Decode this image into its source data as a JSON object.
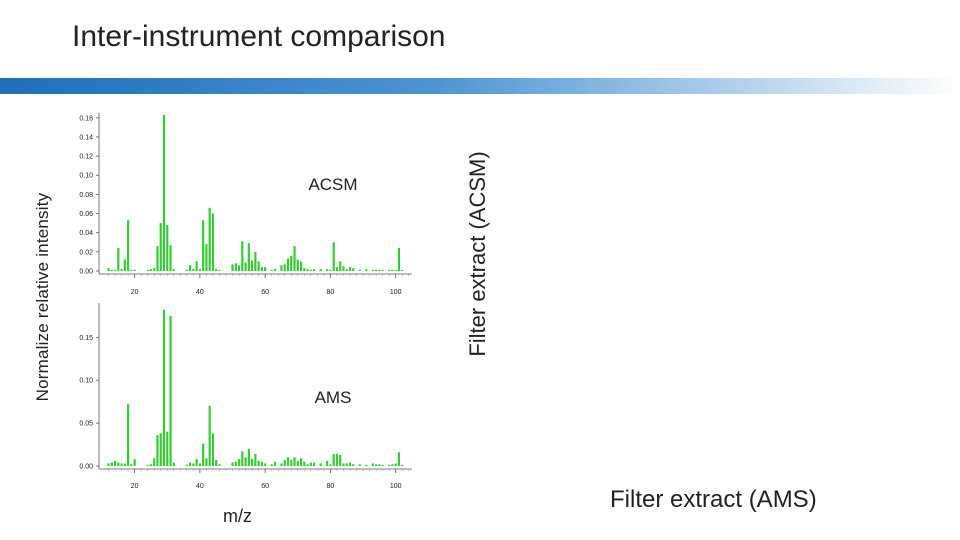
{
  "page": {
    "title": "Inter-instrument comparison"
  },
  "labels": {
    "ylabel": "Normalize relative intensity",
    "xlabel": "m/z",
    "side": "Filter extract (ACSM)",
    "bottom": "Filter extract (AMS)"
  },
  "colors": {
    "bar": "#33cc33",
    "accent": "#1f6fb5"
  },
  "chart_data": [
    {
      "type": "bar",
      "label": "ACSM",
      "xlim": [
        10,
        105
      ],
      "ylim": [
        0,
        0.165
      ],
      "xticks": [
        20,
        40,
        60,
        80,
        100
      ],
      "yticks": [
        0.0,
        0.02,
        0.04,
        0.06,
        0.08,
        0.1,
        0.12,
        0.14,
        0.16
      ],
      "ytick_labels": [
        "0.00",
        "0.02",
        "0.04",
        "0.06",
        "0.08",
        "0.10",
        "0.12",
        "0.14",
        "0.16"
      ],
      "x": [
        12,
        13,
        14,
        15,
        16,
        17,
        18,
        19,
        20,
        24,
        25,
        26,
        27,
        28,
        29,
        30,
        31,
        32,
        36,
        37,
        38,
        39,
        40,
        41,
        42,
        43,
        44,
        45,
        46,
        50,
        51,
        52,
        53,
        54,
        55,
        56,
        57,
        58,
        59,
        60,
        62,
        63,
        65,
        66,
        67,
        68,
        69,
        70,
        71,
        72,
        73,
        74,
        75,
        77,
        79,
        80,
        81,
        82,
        83,
        84,
        85,
        86,
        87,
        89,
        91,
        93,
        94,
        95,
        96,
        98,
        99,
        100,
        101,
        102
      ],
      "y": [
        0.003,
        0.001,
        0.001,
        0.024,
        0.002,
        0.012,
        0.053,
        0.001,
        0.001,
        0.001,
        0.002,
        0.003,
        0.026,
        0.05,
        0.163,
        0.048,
        0.027,
        0.002,
        0.001,
        0.006,
        0.002,
        0.01,
        0.002,
        0.053,
        0.028,
        0.066,
        0.06,
        0.002,
        0.001,
        0.007,
        0.008,
        0.006,
        0.031,
        0.009,
        0.029,
        0.011,
        0.02,
        0.01,
        0.004,
        0.004,
        0.001,
        0.002,
        0.006,
        0.007,
        0.013,
        0.016,
        0.026,
        0.012,
        0.01,
        0.003,
        0.002,
        0.001,
        0.002,
        0.002,
        0.002,
        0.001,
        0.03,
        0.004,
        0.01,
        0.005,
        0.002,
        0.004,
        0.003,
        0.001,
        0.002,
        0.001,
        0.001,
        0.001,
        0.001,
        0.001,
        0.001,
        0.001,
        0.024,
        0.001
      ]
    },
    {
      "type": "bar",
      "label": "AMS",
      "xlim": [
        10,
        105
      ],
      "ylim": [
        0,
        0.19
      ],
      "xticks": [
        20,
        40,
        60,
        80,
        100
      ],
      "yticks": [
        0.0,
        0.05,
        0.1,
        0.15
      ],
      "ytick_labels": [
        "0.00",
        "0.05",
        "0.10",
        "0.15"
      ],
      "x": [
        12,
        13,
        14,
        15,
        16,
        17,
        18,
        19,
        20,
        24,
        25,
        26,
        27,
        28,
        29,
        30,
        31,
        32,
        36,
        37,
        38,
        39,
        40,
        41,
        42,
        43,
        44,
        45,
        46,
        50,
        51,
        52,
        53,
        54,
        55,
        56,
        57,
        58,
        59,
        60,
        62,
        63,
        65,
        66,
        67,
        68,
        69,
        70,
        71,
        72,
        73,
        74,
        75,
        77,
        79,
        80,
        81,
        82,
        83,
        84,
        85,
        86,
        87,
        89,
        91,
        93,
        94,
        95,
        96,
        98,
        99,
        100,
        101,
        102
      ],
      "y": [
        0.003,
        0.004,
        0.006,
        0.004,
        0.003,
        0.003,
        0.072,
        0.002,
        0.008,
        0.001,
        0.002,
        0.009,
        0.036,
        0.038,
        0.182,
        0.04,
        0.175,
        0.004,
        0.001,
        0.004,
        0.003,
        0.008,
        0.003,
        0.026,
        0.009,
        0.07,
        0.038,
        0.007,
        0.002,
        0.004,
        0.005,
        0.008,
        0.017,
        0.01,
        0.02,
        0.008,
        0.014,
        0.006,
        0.005,
        0.003,
        0.002,
        0.005,
        0.003,
        0.007,
        0.01,
        0.007,
        0.01,
        0.006,
        0.009,
        0.005,
        0.002,
        0.004,
        0.004,
        0.003,
        0.006,
        0.002,
        0.014,
        0.014,
        0.013,
        0.003,
        0.003,
        0.004,
        0.002,
        0.002,
        0.001,
        0.003,
        0.002,
        0.002,
        0.001,
        0.001,
        0.002,
        0.003,
        0.016,
        0.001
      ]
    }
  ]
}
